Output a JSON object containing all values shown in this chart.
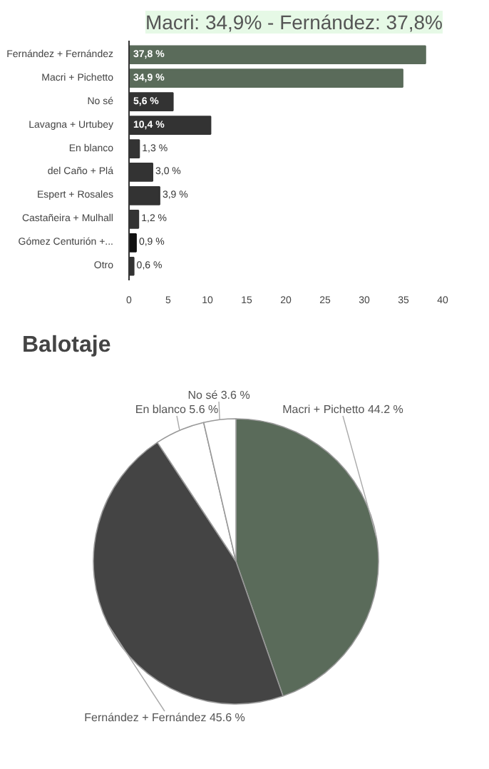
{
  "chart_data": [
    {
      "type": "bar",
      "orientation": "horizontal",
      "subtitle": "Macri: 34,9% - Fernández: 37,8%",
      "categories": [
        "Fernández + Fernández",
        "Macri + Pichetto",
        "No sé",
        "Lavagna + Urtubey",
        "En blanco",
        "del Caño + Plá",
        "Espert + Rosales",
        "Castañeira + Mulhall",
        "Gómez Centurión +...",
        "Otro"
      ],
      "values": [
        37.8,
        34.9,
        5.6,
        10.4,
        1.3,
        3.0,
        3.9,
        1.2,
        0.9,
        0.6
      ],
      "colors": [
        "#5a6b5a",
        "#5a6b5a",
        "#333333",
        "#333333",
        "#333333",
        "#333333",
        "#333333",
        "#333333",
        "#111111",
        "#333333"
      ],
      "value_labels": [
        "37,8 %",
        "34,9 %",
        "5,6 %",
        "10,4 %",
        "1,3 %",
        "3,0 %",
        "3,9 %",
        "1,2 %",
        "0,9 %",
        "0,6 %"
      ],
      "xlim": [
        0,
        40
      ],
      "xticks": [
        0,
        5,
        10,
        15,
        20,
        25,
        30,
        35,
        40
      ],
      "grid": false
    },
    {
      "type": "pie",
      "title": "Balotaje",
      "categories": [
        "Macri + Pichetto",
        "Fernández + Fernández",
        "En blanco",
        "No sé"
      ],
      "values": [
        44.2,
        45.6,
        5.6,
        3.6
      ],
      "colors": [
        "#5a6b5a",
        "#444444",
        "#ffffff",
        "#ffffff"
      ],
      "value_labels": [
        "44.2 %",
        "45.6 %",
        "5.6 %",
        "3.6 %"
      ]
    }
  ]
}
